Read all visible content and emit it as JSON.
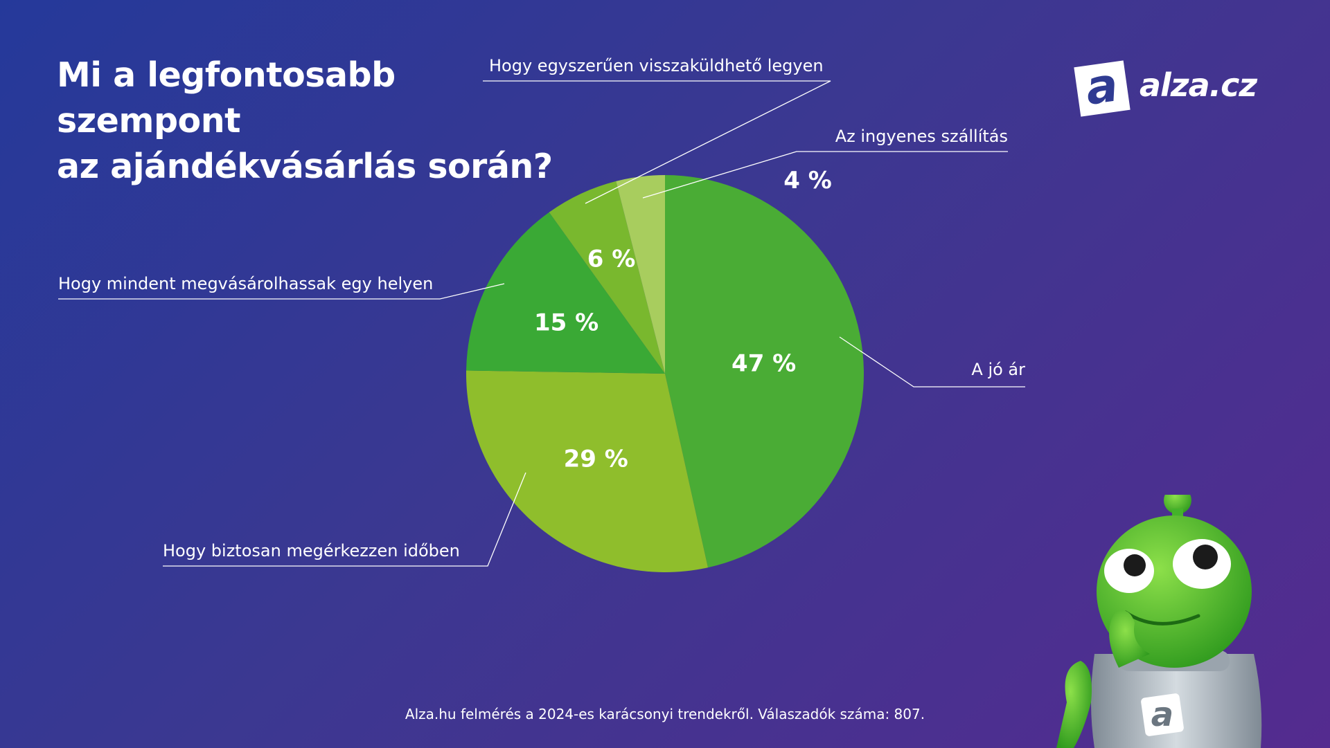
{
  "title_lines": [
    "Mi a legfontosabb",
    "szempont",
    "az ajándékvásárlás során?"
  ],
  "logo": {
    "text": "alza.cz",
    "mark": "a"
  },
  "footer": "Alza.hu felmérés a 2024-es karácsonyi trendekről. Válaszadók száma: 807.",
  "colors": {
    "background_start": "#25399a",
    "background_end": "#542b8f",
    "leader_lines": "#ffffff"
  },
  "chart_data": {
    "type": "pie",
    "title": "Mi a legfontosabb szempont az ajándékvásárlás során?",
    "slices": [
      {
        "label": "A jó ár",
        "value": 47,
        "value_label": "47 %",
        "color": "#4aac35"
      },
      {
        "label": "Hogy biztosan megérkezzen időben",
        "value": 29,
        "value_label": "29 %",
        "color": "#8fbe2c"
      },
      {
        "label": "Hogy mindent megvásárolhassak egy helyen",
        "value": 15,
        "value_label": "15 %",
        "color": "#3aa935"
      },
      {
        "label": "Hogy egyszerűen visszaküldhető legyen",
        "value": 6,
        "value_label": "6 %",
        "color": "#79b82e"
      },
      {
        "label": "Az ingyenes szállítás",
        "value": 4,
        "value_label": "4 %",
        "color": "#a8cd5e"
      }
    ],
    "start_angle": "12 o'clock",
    "direction": "clockwise"
  }
}
